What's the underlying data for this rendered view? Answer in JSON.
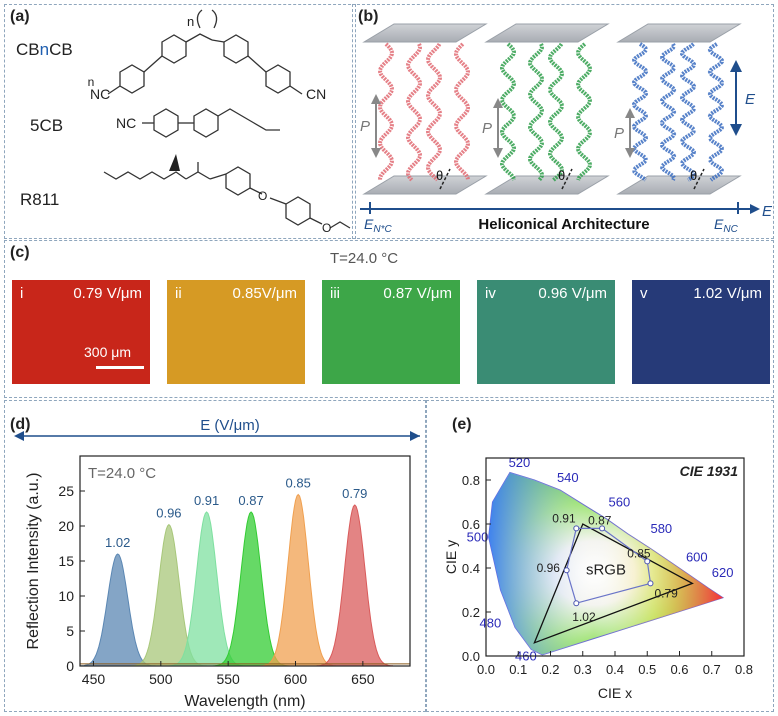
{
  "panels": {
    "a": "(a)",
    "b": "(b)",
    "c": "(c)",
    "d": "(d)",
    "e": "(e)"
  },
  "molecules": {
    "cbncb": {
      "pre": "CB",
      "mid": "n",
      "post": "CB",
      "n_label": "n",
      "group": "CN",
      "group_left": "NC"
    },
    "fivecb": {
      "name": "5CB",
      "group": "NC"
    },
    "r811": {
      "name": "R811",
      "oxygen": "O"
    }
  },
  "architecture": {
    "pitch_label": "P",
    "theta_label": "θ",
    "axis_left": "E",
    "axis_left_sub": "N*C",
    "axis_right": "E",
    "axis_right_sub": "NC",
    "axis_end": "E",
    "field_label": "E",
    "caption": "Heliconical Architecture",
    "colors": [
      "#e06a72",
      "#2e9e4a",
      "#3a6cc0"
    ]
  },
  "micrographs": {
    "temperature": "T=24.0 °C",
    "scale_bar": "300 μm",
    "tiles": [
      {
        "idx": "i",
        "voltage": "0.79 V/μm",
        "color": "#c8261a"
      },
      {
        "idx": "ii",
        "voltage": "0.85V/μm",
        "color": "#d69a24"
      },
      {
        "idx": "iii",
        "voltage": "0.87 V/μm",
        "color": "#3da648"
      },
      {
        "idx": "iv",
        "voltage": "0.96 V/μm",
        "color": "#3a8c74"
      },
      {
        "idx": "v",
        "voltage": "1.02 V/μm",
        "color": "#263a78"
      }
    ]
  },
  "chart_data": [
    {
      "type": "area",
      "title": "",
      "annotation": "T=24.0 °C",
      "field_label": "E (V/μm)",
      "xlabel": "Wavelength (nm)",
      "ylabel": "Reflection Intensity (a.u.)",
      "xlim": [
        440,
        685
      ],
      "ylim": [
        0,
        30
      ],
      "xticks": [
        450,
        500,
        550,
        600,
        650
      ],
      "yticks": [
        0,
        5,
        10,
        15,
        20,
        25
      ],
      "series": [
        {
          "name": "1.02",
          "center": 468,
          "peak": 16,
          "color": "#5b87b3"
        },
        {
          "name": "0.96",
          "center": 506,
          "peak": 20.2,
          "color": "#a8c77a"
        },
        {
          "name": "0.91",
          "center": 534,
          "peak": 22,
          "color": "#7fe0a0"
        },
        {
          "name": "0.87",
          "center": 567,
          "peak": 22,
          "color": "#33cc33"
        },
        {
          "name": "0.85",
          "center": 602,
          "peak": 24.5,
          "color": "#f0a050"
        },
        {
          "name": "0.79",
          "center": 644,
          "peak": 23,
          "color": "#d95b5b"
        }
      ]
    },
    {
      "type": "scatter",
      "title": "CIE 1931",
      "xlabel": "CIE x",
      "ylabel": "CIE y",
      "xlim": [
        0,
        0.8
      ],
      "ylim": [
        0,
        0.9
      ],
      "xticks": [
        "0.0",
        "0.1",
        "0.2",
        "0.3",
        "0.4",
        "0.5",
        "0.6",
        "0.7",
        "0.8"
      ],
      "yticks": [
        "0.0",
        "0.2",
        "0.4",
        "0.6",
        "0.8"
      ],
      "wavelength_labels": [
        "520",
        "540",
        "560",
        "580",
        "600",
        "620",
        "500",
        "480",
        "460"
      ],
      "srgb_label": "sRGB",
      "srgb": [
        [
          0.64,
          0.33
        ],
        [
          0.3,
          0.6
        ],
        [
          0.15,
          0.06
        ]
      ],
      "points": [
        {
          "label": "0.79",
          "x": 0.51,
          "y": 0.33
        },
        {
          "label": "0.85",
          "x": 0.5,
          "y": 0.43
        },
        {
          "label": "0.87",
          "x": 0.36,
          "y": 0.58
        },
        {
          "label": "0.91",
          "x": 0.28,
          "y": 0.58
        },
        {
          "label": "0.96",
          "x": 0.25,
          "y": 0.39
        },
        {
          "label": "1.02",
          "x": 0.28,
          "y": 0.24
        }
      ]
    }
  ]
}
